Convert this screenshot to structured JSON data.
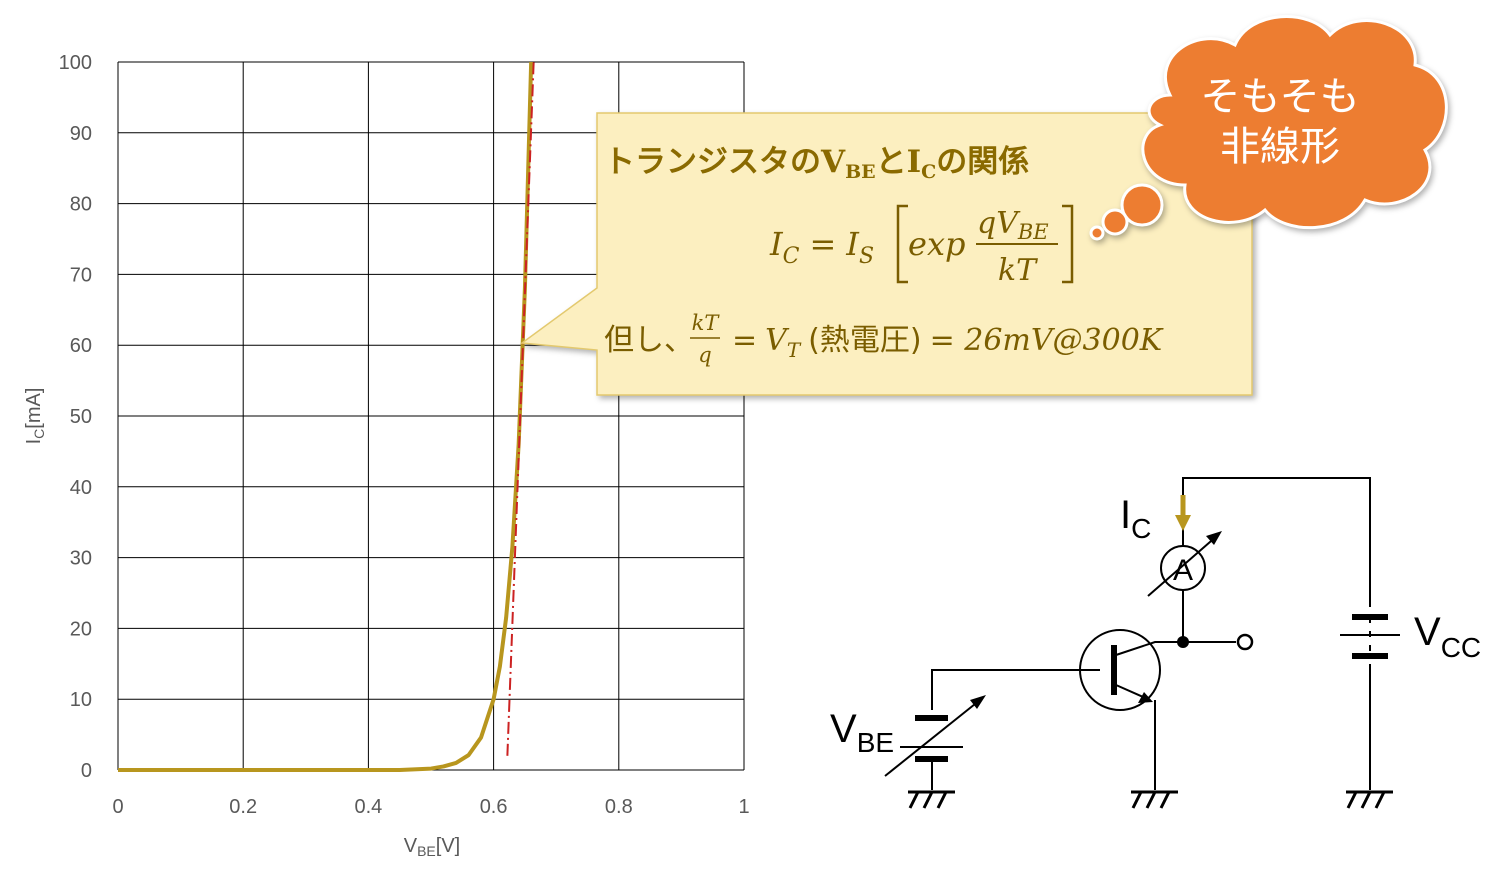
{
  "chart_data": {
    "type": "line",
    "xlim": [
      0,
      1
    ],
    "ylim": [
      0,
      100
    ],
    "xticks": [
      0,
      0.2,
      0.4,
      0.6,
      0.8,
      1
    ],
    "yticks": [
      0,
      10,
      20,
      30,
      40,
      50,
      60,
      70,
      80,
      90,
      100
    ],
    "grid": true,
    "xlabel_parts": [
      "V",
      "BE",
      "[V]"
    ],
    "ylabel_parts": [
      "I",
      "C",
      "[mA]"
    ],
    "series": [
      {
        "color": "#b8961e",
        "x": [
          0,
          0.1,
          0.2,
          0.3,
          0.4,
          0.45,
          0.5,
          0.52,
          0.54,
          0.56,
          0.58,
          0.6,
          0.61,
          0.62,
          0.63,
          0.64,
          0.65,
          0.66
        ],
        "values": [
          0,
          0,
          0,
          0,
          0,
          0,
          0.2,
          0.5,
          1,
          2.1,
          4.6,
          10,
          14.6,
          21.5,
          31.5,
          46,
          68,
          100
        ]
      },
      {
        "color": "#cc2222",
        "dash": "dashdot",
        "x": [
          0.622,
          0.664
        ],
        "values": [
          2,
          100
        ]
      }
    ]
  },
  "callout": {
    "title_parts": [
      "トランジスタの",
      "V",
      "BE",
      "と",
      "I",
      "C",
      "の関係"
    ],
    "formula_parts": [
      "I",
      "C",
      "=",
      "I",
      "S",
      "exp",
      "qV",
      "BE",
      "kT"
    ],
    "note_parts": [
      "但し、",
      "kT",
      "q",
      "=",
      "V",
      "T",
      "(熱電圧)",
      "= 26mV@300K"
    ]
  },
  "thought_bubble": {
    "lines": [
      "そもそも",
      "非線形"
    ]
  },
  "circuit": {
    "ic_label": [
      "I",
      "C"
    ],
    "ammeter": "A",
    "vbe_label": [
      "V",
      "BE"
    ],
    "vcc_label": [
      "V",
      "CC"
    ]
  }
}
